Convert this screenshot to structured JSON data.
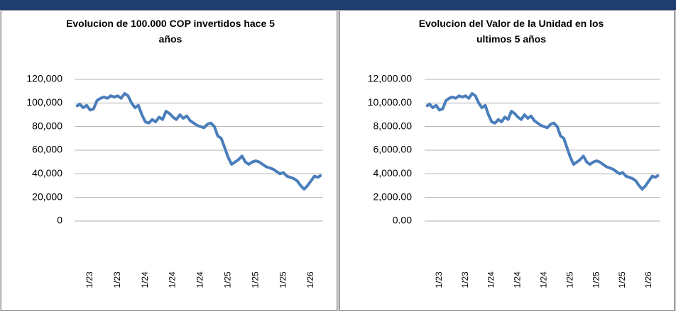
{
  "chart_data": [
    {
      "type": "line",
      "title": "Evolucion de 100.000 COP invertidos hace 5 años",
      "categories": [
        null,
        null,
        null,
        null,
        "1/23",
        null,
        null,
        null,
        null,
        null,
        null,
        null,
        "1/23",
        null,
        null,
        null,
        null,
        null,
        null,
        null,
        "1/24",
        null,
        null,
        null,
        null,
        null,
        null,
        null,
        "1/24",
        null,
        null,
        null,
        null,
        null,
        null,
        null,
        "1/24",
        null,
        null,
        null,
        null,
        null,
        null,
        null,
        "1/25",
        null,
        null,
        null,
        null,
        null,
        null,
        null,
        "1/25",
        null,
        null,
        null,
        null,
        null,
        null,
        null,
        "1/25",
        null,
        null,
        null,
        null,
        null,
        null,
        null,
        "1/26",
        null,
        null,
        null
      ],
      "series": [
        {
          "color": "#4a7ebb",
          "values": [
            97000,
            99000,
            96000,
            98000,
            94000,
            95000,
            102000,
            104000,
            105000,
            104000,
            106000,
            105000,
            106000,
            104000,
            108000,
            106000,
            100000,
            96000,
            98000,
            90000,
            84000,
            83000,
            86000,
            84000,
            88000,
            86000,
            93000,
            91000,
            88000,
            86000,
            90000,
            87000,
            89000,
            85000,
            83000,
            81000,
            80000,
            79000,
            82000,
            83000,
            80000,
            72000,
            70000,
            62000,
            54000,
            48000,
            50000,
            52000,
            55000,
            50000,
            48000,
            50000,
            51000,
            50000,
            48000,
            46000,
            45000,
            44000,
            42000,
            40000,
            41000,
            38000,
            37000,
            36000,
            34000,
            30000,
            27000,
            30000,
            34000,
            38000,
            37000,
            39000
          ]
        }
      ],
      "ylim": [
        0,
        120000
      ],
      "yticks": [
        0,
        {
          "value": 20000,
          "label": "20,000"
        },
        {
          "value": 40000,
          "label": "40,000"
        },
        {
          "value": 60000,
          "label": "60,000"
        },
        {
          "value": 80000,
          "label": "80,000"
        },
        {
          "value": 100000,
          "label": "100,000"
        },
        {
          "value": 120000,
          "label": "120,000"
        }
      ],
      "grid": true
    },
    {
      "type": "line",
      "title": "Evolucion del Valor de la Unidad en los ultimos 5 años",
      "categories": [
        null,
        null,
        null,
        null,
        "1/23",
        null,
        null,
        null,
        null,
        null,
        null,
        null,
        "1/23",
        null,
        null,
        null,
        null,
        null,
        null,
        null,
        "1/24",
        null,
        null,
        null,
        null,
        null,
        null,
        null,
        "1/24",
        null,
        null,
        null,
        null,
        null,
        null,
        null,
        "1/24",
        null,
        null,
        null,
        null,
        null,
        null,
        null,
        "1/25",
        null,
        null,
        null,
        null,
        null,
        null,
        null,
        "1/25",
        null,
        null,
        null,
        null,
        null,
        null,
        null,
        "1/25",
        null,
        null,
        null,
        null,
        null,
        null,
        null,
        "1/26",
        null,
        null,
        null
      ],
      "series": [
        {
          "color": "#4a7ebb",
          "values": [
            9700,
            9900,
            9600,
            9800,
            9400,
            9500,
            10200,
            10400,
            10500,
            10400,
            10600,
            10500,
            10600,
            10400,
            10800,
            10600,
            10000,
            9600,
            9800,
            9000,
            8400,
            8300,
            8600,
            8400,
            8800,
            8600,
            9300,
            9100,
            8800,
            8600,
            9000,
            8700,
            8900,
            8500,
            8300,
            8100,
            8000,
            7900,
            8200,
            8300,
            8000,
            7200,
            7000,
            6200,
            5400,
            4800,
            5000,
            5200,
            5500,
            5000,
            4800,
            5000,
            5100,
            5000,
            4800,
            4600,
            4500,
            4400,
            4200,
            4000,
            4100,
            3800,
            3700,
            3600,
            3400,
            3000,
            2700,
            3000,
            3400,
            3800,
            3700,
            3900
          ]
        }
      ],
      "ylim": [
        0,
        12000
      ],
      "yticks": [
        {
          "value": 0,
          "label": "0.00"
        },
        {
          "value": 2000,
          "label": "2,000.00"
        },
        {
          "value": 4000,
          "label": "4,000.00"
        },
        {
          "value": 6000,
          "label": "6,000.00"
        },
        {
          "value": 8000,
          "label": "8,000.00"
        },
        {
          "value": 10000,
          "label": "10,000.00"
        },
        {
          "value": 12000,
          "label": "12,000.00"
        }
      ],
      "grid": true
    }
  ]
}
